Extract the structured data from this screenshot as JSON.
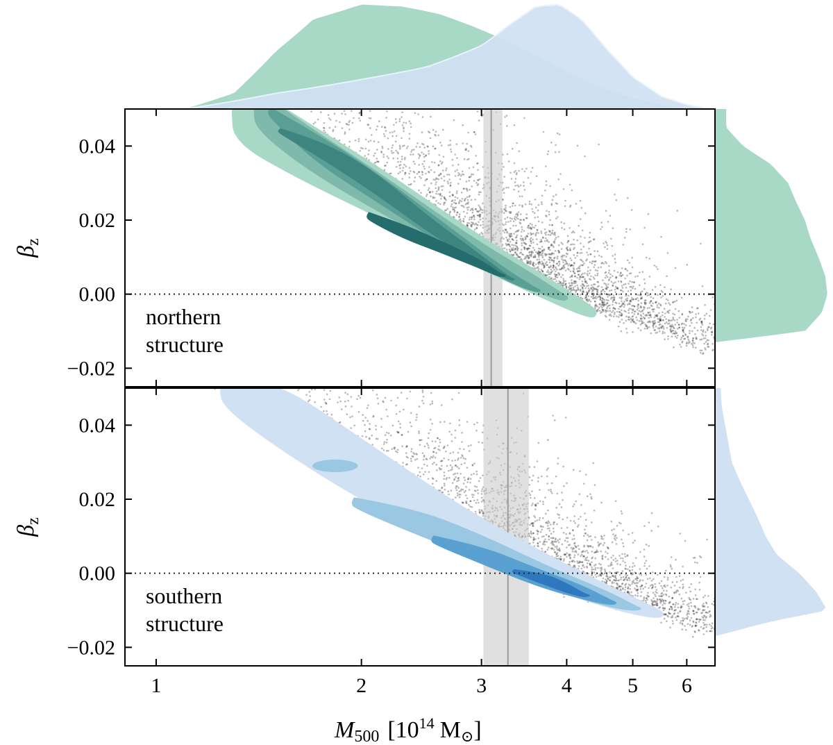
{
  "chart_data": [
    {
      "type": "scatter",
      "panel": "northern",
      "annotation": [
        "northern",
        "structure"
      ],
      "ylabel": "β",
      "ylabel_sub": "z",
      "xscale": "log",
      "xlim": [
        0.9,
        6.6
      ],
      "ylim": [
        -0.025,
        0.05
      ],
      "yticks": [
        0.04,
        0.02,
        0.0,
        -0.02
      ],
      "ytick_labels": [
        "0.04",
        "0.02",
        "0.00",
        "−0.02"
      ],
      "reference_line_y": 0.0,
      "mass_band": {
        "center": 3.1,
        "low": 3.02,
        "high": 3.22
      },
      "relation": [
        [
          1.05,
          0.058
        ],
        [
          1.5,
          0.04
        ],
        [
          2.0,
          0.027
        ],
        [
          3.0,
          0.01
        ],
        [
          4.0,
          0.0
        ],
        [
          4.6,
          -0.006
        ],
        [
          6.3,
          -0.015
        ]
      ],
      "contour_color_levels": [
        "#a8d8c6",
        "#7fb9ab",
        "#5a9f96",
        "#3e857f",
        "#256c6c"
      ],
      "contour_levels": [
        {
          "level": 1,
          "ridge": [
            [
              1.3,
              0.05
            ],
            [
              1.6,
              0.04
            ],
            [
              2.1,
              0.028
            ],
            [
              3.0,
              0.011
            ],
            [
              3.7,
              0.002
            ],
            [
              4.35,
              -0.005
            ]
          ],
          "width": [
            0.009,
            0.0085,
            0.007,
            0.0045,
            0.0033,
            0.002
          ]
        },
        {
          "level": 2,
          "ridge": [
            [
              1.4,
              0.05
            ],
            [
              1.65,
              0.04
            ],
            [
              2.1,
              0.028
            ],
            [
              2.9,
              0.012
            ],
            [
              3.5,
              0.004
            ],
            [
              3.95,
              -0.001
            ]
          ],
          "width": [
            0.0055,
            0.006,
            0.0055,
            0.0035,
            0.0025,
            0.0012
          ]
        },
        {
          "level": 3,
          "ridge": [
            [
              1.47,
              0.049
            ],
            [
              1.7,
              0.04
            ],
            [
              2.1,
              0.029
            ],
            [
              2.7,
              0.015
            ],
            [
              3.2,
              0.006
            ],
            [
              3.6,
              0.001
            ]
          ],
          "width": [
            0.0015,
            0.004,
            0.004,
            0.003,
            0.0018,
            0.0008
          ]
        },
        {
          "level": 4,
          "ridge": [
            [
              1.52,
              0.044
            ],
            [
              1.75,
              0.039
            ],
            [
              2.1,
              0.03
            ],
            [
              2.5,
              0.019
            ],
            [
              2.95,
              0.01
            ],
            [
              3.3,
              0.004
            ]
          ],
          "width": [
            0.0008,
            0.0025,
            0.003,
            0.0022,
            0.0015,
            0.0006
          ]
        },
        {
          "level": 5,
          "ridge": [
            [
              2.05,
              0.021
            ],
            [
              2.3,
              0.017
            ],
            [
              2.6,
              0.013
            ],
            [
              3.0,
              0.008
            ],
            [
              3.2,
              0.005
            ]
          ],
          "width": [
            0.0012,
            0.002,
            0.0017,
            0.0013,
            0.0006
          ]
        }
      ],
      "marginal_x_histogram": {
        "color": "#a8d8c6",
        "x": [
          1.1,
          1.3,
          1.5,
          1.7,
          2.0,
          2.3,
          2.6,
          3.0,
          3.5,
          4.0,
          4.5,
          5.0,
          5.5,
          6.0
        ],
        "density": [
          0.0,
          0.15,
          0.55,
          0.85,
          0.99,
          0.97,
          0.9,
          0.75,
          0.55,
          0.35,
          0.2,
          0.1,
          0.04,
          0.0
        ]
      },
      "marginal_y_histogram": {
        "color": "#a8d8c6",
        "y": [
          -0.013,
          -0.01,
          -0.005,
          0.0,
          0.005,
          0.01,
          0.015,
          0.02,
          0.025,
          0.03,
          0.035,
          0.04,
          0.045,
          0.05
        ],
        "density": [
          0.0,
          0.8,
          0.95,
          1.0,
          0.98,
          0.92,
          0.85,
          0.8,
          0.72,
          0.65,
          0.5,
          0.25,
          0.1,
          0.1
        ]
      }
    },
    {
      "type": "scatter",
      "panel": "southern",
      "annotation": [
        "southern",
        "structure"
      ],
      "ylabel": "β",
      "ylabel_sub": "z",
      "xlabel": "M",
      "xlabel_sub": "500",
      "xlabel_units_prefix": "[10",
      "xlabel_units_exp": "14",
      "xlabel_units_M": "M",
      "xlabel_units_sun": "⊙",
      "xlabel_units_suffix": "]",
      "xscale": "log",
      "xlim": [
        0.9,
        6.6
      ],
      "ylim": [
        -0.025,
        0.05
      ],
      "xticks": [
        1,
        2,
        3,
        4,
        5,
        6
      ],
      "xtick_labels": [
        "1",
        "2",
        "3",
        "4",
        "5",
        "6"
      ],
      "yticks": [
        0.04,
        0.02,
        0.0,
        -0.02
      ],
      "ytick_labels": [
        "0.04",
        "0.02",
        "0.00",
        "−0.02"
      ],
      "reference_line_y": 0.0,
      "mass_band": {
        "center": 3.28,
        "low": 3.02,
        "high": 3.52
      },
      "relation": [
        [
          1.05,
          0.058
        ],
        [
          1.5,
          0.04
        ],
        [
          2.0,
          0.024
        ],
        [
          3.0,
          0.006
        ],
        [
          4.0,
          -0.004
        ],
        [
          5.4,
          -0.011
        ],
        [
          6.3,
          -0.015
        ]
      ],
      "contour_color_levels": [
        "#cfe1f2",
        "#9ac8e2",
        "#5aa1d2",
        "#2f78bd"
      ],
      "contour_levels": [
        {
          "level": 1,
          "ridge": [
            [
              1.25,
              0.05
            ],
            [
              1.5,
              0.043
            ],
            [
              2.0,
              0.028
            ],
            [
              2.8,
              0.012
            ],
            [
              3.8,
              0.0
            ],
            [
              4.7,
              -0.007
            ],
            [
              5.45,
              -0.011
            ]
          ],
          "width": [
            0.005,
            0.009,
            0.0085,
            0.006,
            0.0045,
            0.003,
            0.0015
          ]
        },
        {
          "level": 2,
          "ridge": [
            [
              1.95,
              0.019
            ],
            [
              2.4,
              0.014
            ],
            [
              3.0,
              0.007
            ],
            [
              3.8,
              -0.0015
            ],
            [
              4.6,
              -0.007
            ],
            [
              5.05,
              -0.0095
            ]
          ],
          "width": [
            0.0015,
            0.0035,
            0.0035,
            0.003,
            0.0022,
            0.0008
          ]
        },
        {
          "level": 3,
          "ridge": [
            [
              2.55,
              0.009
            ],
            [
              3.0,
              0.005
            ],
            [
              3.6,
              -0.001
            ],
            [
              4.2,
              -0.005
            ],
            [
              4.65,
              -0.008
            ]
          ],
          "width": [
            0.0012,
            0.0025,
            0.0025,
            0.002,
            0.0008
          ]
        },
        {
          "level": 4,
          "ridge": [
            [
              3.35,
              0.0005
            ],
            [
              3.7,
              -0.0015
            ],
            [
              4.0,
              -0.004
            ],
            [
              4.25,
              -0.006
            ]
          ],
          "width": [
            0.0006,
            0.0016,
            0.0014,
            0.0006
          ]
        }
      ],
      "contour_islands": [
        {
          "x": 1.83,
          "y": 0.029,
          "rx": 0.08,
          "ry": 0.0017,
          "color": "#9ac8e2"
        }
      ],
      "marginal_x_histogram": {
        "color": "#cfe1f2",
        "x": [
          1.1,
          1.5,
          2.0,
          2.5,
          3.0,
          3.3,
          3.6,
          3.9,
          4.2,
          4.6,
          5.0,
          5.5,
          6.0,
          6.5
        ],
        "density": [
          0.0,
          0.15,
          0.28,
          0.4,
          0.6,
          0.8,
          0.97,
          0.99,
          0.85,
          0.55,
          0.3,
          0.12,
          0.04,
          0.0
        ]
      },
      "marginal_y_histogram": {
        "color": "#cfe1f2",
        "y": [
          -0.017,
          -0.013,
          -0.01,
          -0.005,
          0.0,
          0.005,
          0.01,
          0.015,
          0.02,
          0.025,
          0.03,
          0.035,
          0.04,
          0.045,
          0.05
        ],
        "density": [
          0.0,
          0.5,
          1.0,
          0.9,
          0.75,
          0.55,
          0.45,
          0.38,
          0.3,
          0.22,
          0.15,
          0.12,
          0.09,
          0.06,
          0.05
        ]
      }
    }
  ]
}
